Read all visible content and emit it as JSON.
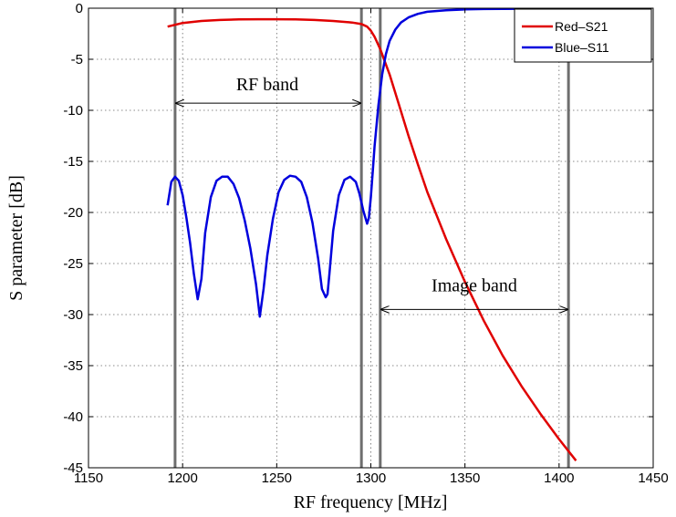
{
  "chart_data": {
    "type": "line",
    "xlabel": "RF frequency [MHz]",
    "ylabel": "S parameter [dB]",
    "xlim": [
      1150,
      1450
    ],
    "ylim": [
      -45,
      0
    ],
    "xticks": [
      1150,
      1200,
      1250,
      1300,
      1350,
      1400,
      1450
    ],
    "yticks": [
      0,
      -5,
      -10,
      -15,
      -20,
      -25,
      -30,
      -35,
      -40,
      -45
    ],
    "grid": true,
    "legend_position": "top-right",
    "series": [
      {
        "name": "Red–S21",
        "color": "#e00000",
        "x": [
          1192,
          1200,
          1210,
          1220,
          1230,
          1240,
          1250,
          1260,
          1270,
          1280,
          1290,
          1295,
          1298,
          1300,
          1302,
          1305,
          1310,
          1315,
          1320,
          1325,
          1330,
          1340,
          1350,
          1360,
          1370,
          1380,
          1390,
          1400,
          1409
        ],
        "y": [
          -1.8,
          -1.45,
          -1.25,
          -1.15,
          -1.1,
          -1.08,
          -1.08,
          -1.1,
          -1.15,
          -1.25,
          -1.4,
          -1.55,
          -1.8,
          -2.2,
          -2.8,
          -4.0,
          -6.5,
          -9.5,
          -12.5,
          -15.3,
          -18.0,
          -22.6,
          -26.8,
          -30.6,
          -34.0,
          -37.0,
          -39.7,
          -42.2,
          -44.3
        ]
      },
      {
        "name": "Blue–S11",
        "color": "#0000dd",
        "x": [
          1192,
          1194,
          1196,
          1198,
          1200,
          1202,
          1204,
          1206,
          1208,
          1210,
          1212,
          1215,
          1218,
          1221,
          1224,
          1227,
          1230,
          1233,
          1236,
          1239,
          1241,
          1243,
          1245,
          1248,
          1251,
          1254,
          1257,
          1260,
          1263,
          1266,
          1269,
          1272,
          1274,
          1276,
          1277,
          1278,
          1280,
          1283,
          1286,
          1289,
          1292,
          1294,
          1296,
          1298,
          1299,
          1300,
          1301,
          1302,
          1304,
          1306,
          1308,
          1310,
          1313,
          1316,
          1320,
          1325,
          1330,
          1340,
          1350,
          1360,
          1380,
          1400,
          1409
        ],
        "y": [
          -19.3,
          -17.0,
          -16.5,
          -16.9,
          -18.3,
          -20.5,
          -23.0,
          -26.0,
          -28.5,
          -26.5,
          -22.0,
          -18.5,
          -16.9,
          -16.5,
          -16.5,
          -17.2,
          -18.6,
          -20.8,
          -23.5,
          -27.0,
          -30.2,
          -27.5,
          -24.2,
          -20.6,
          -18.0,
          -16.8,
          -16.4,
          -16.5,
          -17.0,
          -18.5,
          -21.0,
          -24.5,
          -27.5,
          -28.3,
          -28.0,
          -26.0,
          -21.8,
          -18.3,
          -16.8,
          -16.5,
          -17.0,
          -18.2,
          -19.8,
          -21.1,
          -20.5,
          -18.5,
          -16.0,
          -13.5,
          -9.5,
          -6.5,
          -4.5,
          -3.2,
          -2.1,
          -1.4,
          -0.9,
          -0.55,
          -0.35,
          -0.2,
          -0.12,
          -0.08,
          -0.05,
          -0.03,
          -0.02
        ]
      }
    ],
    "vertical_lines": [
      1196,
      1295,
      1305,
      1405
    ],
    "annotations": [
      {
        "text": "RF band",
        "x": 1245,
        "y": -7.5,
        "arrow_from": 1196,
        "arrow_to": 1295,
        "arrow_y": -9.3
      },
      {
        "text": "Image band",
        "x": 1355,
        "y": -27.2,
        "arrow_from": 1305,
        "arrow_to": 1405,
        "arrow_y": -29.5
      }
    ]
  }
}
